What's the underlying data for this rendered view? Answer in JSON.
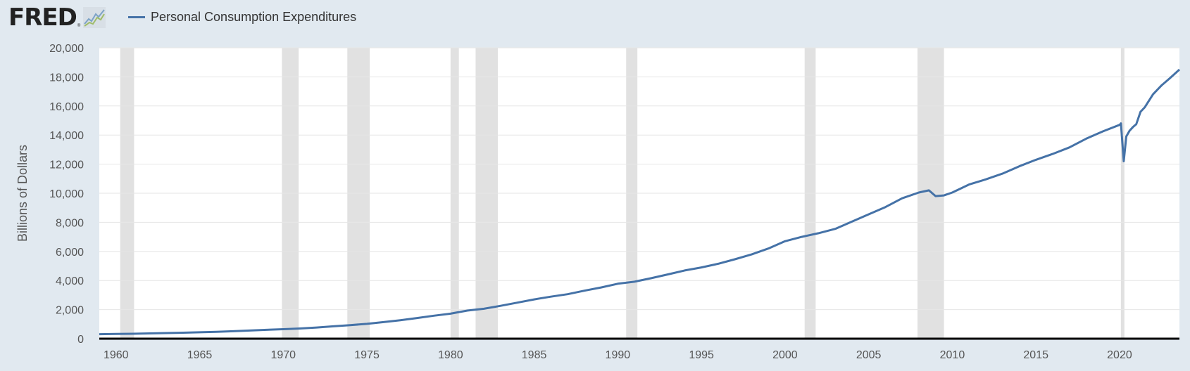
{
  "header": {
    "logo_text": "FRED",
    "logo_reg": "®",
    "logo_icon": "trend-chart-icon"
  },
  "colors": {
    "background": "#e1e9f0",
    "plot_background": "#ffffff",
    "series": "#4572a7",
    "recession": "#e1e1e1",
    "grid": "#e6e6e6",
    "axis": "#000000"
  },
  "chart_data": {
    "type": "line",
    "title": "",
    "xlabel": "",
    "ylabel": "Billions of Dollars",
    "xlim": [
      1959.0,
      2023.58
    ],
    "ylim": [
      0,
      20000
    ],
    "y_ticks": [
      0,
      2000,
      4000,
      6000,
      8000,
      10000,
      12000,
      14000,
      16000,
      18000,
      20000
    ],
    "y_tick_labels": [
      "0",
      "2,000",
      "4,000",
      "6,000",
      "8,000",
      "10,000",
      "12,000",
      "14,000",
      "16,000",
      "18,000",
      "20,000"
    ],
    "x_ticks": [
      1960,
      1965,
      1970,
      1975,
      1980,
      1985,
      1990,
      1995,
      2000,
      2005,
      2010,
      2015,
      2020
    ],
    "x_tick_labels": [
      "1960",
      "1965",
      "1970",
      "1975",
      "1980",
      "1985",
      "1990",
      "1995",
      "2000",
      "2005",
      "2010",
      "2015",
      "2020"
    ],
    "grid": true,
    "legend": "top-left",
    "recessions": [
      [
        1960.25,
        1961.08
      ],
      [
        1969.92,
        1970.92
      ],
      [
        1973.83,
        1975.17
      ],
      [
        1980.0,
        1980.5
      ],
      [
        1981.5,
        1982.83
      ],
      [
        1990.5,
        1991.17
      ],
      [
        2001.17,
        2001.83
      ],
      [
        2007.92,
        2009.5
      ],
      [
        2020.08,
        2020.29
      ]
    ],
    "series": [
      {
        "name": "Personal Consumption Expenditures",
        "x": [
          1959.0,
          1960.0,
          1961.0,
          1962.0,
          1963.0,
          1964.0,
          1965.0,
          1966.0,
          1967.0,
          1968.0,
          1969.0,
          1970.0,
          1971.0,
          1972.0,
          1973.0,
          1974.0,
          1975.0,
          1976.0,
          1977.0,
          1978.0,
          1979.0,
          1980.0,
          1981.0,
          1982.0,
          1983.0,
          1984.0,
          1985.0,
          1986.0,
          1987.0,
          1988.0,
          1989.0,
          1990.0,
          1991.0,
          1992.0,
          1993.0,
          1994.0,
          1995.0,
          1996.0,
          1997.0,
          1998.0,
          1999.0,
          2000.0,
          2001.0,
          2002.0,
          2003.0,
          2004.0,
          2005.0,
          2006.0,
          2007.0,
          2008.0,
          2008.6,
          2009.0,
          2009.5,
          2010.0,
          2011.0,
          2012.0,
          2013.0,
          2014.0,
          2015.0,
          2016.0,
          2017.0,
          2018.0,
          2019.0,
          2020.0,
          2020.08,
          2020.25,
          2020.4,
          2020.6,
          2020.8,
          2021.0,
          2021.25,
          2021.5,
          2022.0,
          2022.5,
          2023.0,
          2023.58
        ],
        "values": [
          310,
          330,
          340,
          360,
          385,
          410,
          440,
          475,
          510,
          560,
          610,
          650,
          700,
          770,
          850,
          930,
          1020,
          1140,
          1270,
          1420,
          1580,
          1720,
          1930,
          2060,
          2260,
          2480,
          2700,
          2890,
          3060,
          3300,
          3520,
          3780,
          3920,
          4160,
          4420,
          4690,
          4900,
          5150,
          5460,
          5790,
          6200,
          6700,
          7000,
          7250,
          7550,
          8050,
          8550,
          9050,
          9650,
          10050,
          10200,
          9800,
          9850,
          10050,
          10600,
          10950,
          11350,
          11850,
          12300,
          12700,
          13150,
          13750,
          14250,
          14700,
          14800,
          12200,
          13900,
          14300,
          14550,
          14750,
          15600,
          15900,
          16800,
          17400,
          17900,
          18500
        ]
      }
    ]
  }
}
